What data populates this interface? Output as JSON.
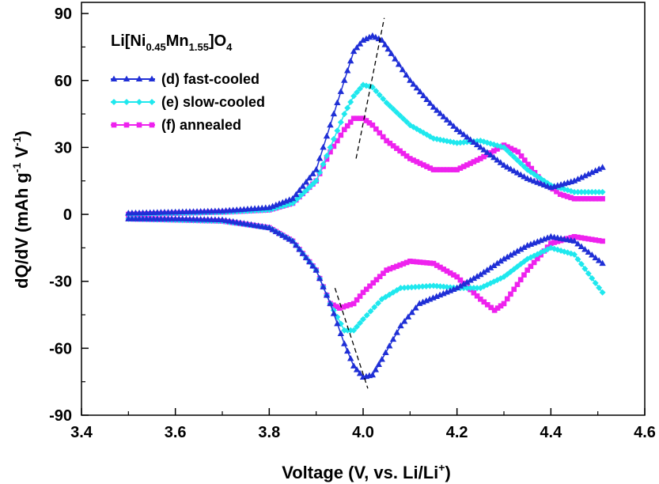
{
  "chart_data": {
    "type": "line",
    "title": "",
    "annotation": {
      "prefix": "Li[Ni",
      "sub1": "0.45",
      "mid": "Mn",
      "sub2": "1.55",
      "after": "]O",
      "sub3": "4"
    },
    "xlabel": {
      "main": "Voltage (V, vs. Li/Li",
      "sup": "+",
      "close": ")"
    },
    "ylabel": {
      "main": "dQ/dV (mAh g",
      "sup1": "-1",
      "mid": " V",
      "sup2": "-1",
      "close": ")"
    },
    "xlim": [
      3.4,
      4.6
    ],
    "ylim": [
      -90,
      95
    ],
    "x_ticks": [
      "3.4",
      "3.6",
      "3.8",
      "4.0",
      "4.2",
      "4.4",
      "4.6"
    ],
    "y_ticks": [
      "90",
      "60",
      "30",
      "0",
      "-30",
      "-60",
      "-90"
    ],
    "grid": false,
    "legend_position": "top-left",
    "series": [
      {
        "name": "(d) fast-cooled",
        "color": "#1f2fd6",
        "marker": "triangle",
        "charge": [
          [
            3.5,
            0.5
          ],
          [
            3.6,
            1
          ],
          [
            3.7,
            1.5
          ],
          [
            3.8,
            3
          ],
          [
            3.85,
            7
          ],
          [
            3.9,
            20
          ],
          [
            3.93,
            40
          ],
          [
            3.96,
            60
          ],
          [
            3.98,
            73
          ],
          [
            4.0,
            78
          ],
          [
            4.02,
            80
          ],
          [
            4.04,
            78
          ],
          [
            4.06,
            72
          ],
          [
            4.1,
            60
          ],
          [
            4.15,
            48
          ],
          [
            4.2,
            38
          ],
          [
            4.25,
            30
          ],
          [
            4.3,
            22
          ],
          [
            4.35,
            16
          ],
          [
            4.4,
            12
          ],
          [
            4.45,
            15
          ],
          [
            4.51,
            21
          ]
        ],
        "discharge": [
          [
            3.5,
            -2
          ],
          [
            3.6,
            -2
          ],
          [
            3.7,
            -2.5
          ],
          [
            3.8,
            -6
          ],
          [
            3.85,
            -12
          ],
          [
            3.9,
            -25
          ],
          [
            3.93,
            -40
          ],
          [
            3.96,
            -58
          ],
          [
            3.98,
            -68
          ],
          [
            4.0,
            -73
          ],
          [
            4.02,
            -72
          ],
          [
            4.04,
            -65
          ],
          [
            4.08,
            -50
          ],
          [
            4.12,
            -40
          ],
          [
            4.2,
            -33
          ],
          [
            4.25,
            -27
          ],
          [
            4.3,
            -20
          ],
          [
            4.35,
            -14
          ],
          [
            4.4,
            -10
          ],
          [
            4.45,
            -12
          ],
          [
            4.51,
            -22
          ]
        ]
      },
      {
        "name": "(e) slow-cooled",
        "color": "#1fe8ee",
        "marker": "diamond",
        "charge": [
          [
            3.5,
            0
          ],
          [
            3.6,
            0.5
          ],
          [
            3.7,
            1
          ],
          [
            3.8,
            2
          ],
          [
            3.85,
            5
          ],
          [
            3.9,
            15
          ],
          [
            3.93,
            30
          ],
          [
            3.96,
            45
          ],
          [
            3.98,
            53
          ],
          [
            4.0,
            58
          ],
          [
            4.02,
            57
          ],
          [
            4.05,
            50
          ],
          [
            4.1,
            40
          ],
          [
            4.15,
            34
          ],
          [
            4.2,
            32
          ],
          [
            4.25,
            33
          ],
          [
            4.3,
            30
          ],
          [
            4.35,
            20
          ],
          [
            4.4,
            13
          ],
          [
            4.45,
            10
          ],
          [
            4.51,
            10
          ]
        ],
        "discharge": [
          [
            3.5,
            -2
          ],
          [
            3.6,
            -2.5
          ],
          [
            3.7,
            -3
          ],
          [
            3.8,
            -6
          ],
          [
            3.85,
            -12
          ],
          [
            3.9,
            -25
          ],
          [
            3.93,
            -40
          ],
          [
            3.96,
            -52
          ],
          [
            3.98,
            -52
          ],
          [
            4.0,
            -47
          ],
          [
            4.04,
            -38
          ],
          [
            4.08,
            -33
          ],
          [
            4.15,
            -32
          ],
          [
            4.2,
            -33
          ],
          [
            4.25,
            -33
          ],
          [
            4.3,
            -28
          ],
          [
            4.35,
            -20
          ],
          [
            4.4,
            -15
          ],
          [
            4.45,
            -18
          ],
          [
            4.51,
            -35
          ]
        ]
      },
      {
        "name": "(f)  annealed",
        "color": "#ee22ee",
        "marker": "square",
        "charge": [
          [
            3.5,
            0
          ],
          [
            3.6,
            0.5
          ],
          [
            3.7,
            1
          ],
          [
            3.8,
            2
          ],
          [
            3.85,
            5
          ],
          [
            3.9,
            15
          ],
          [
            3.93,
            28
          ],
          [
            3.96,
            38
          ],
          [
            3.98,
            43
          ],
          [
            4.0,
            43
          ],
          [
            4.02,
            40
          ],
          [
            4.05,
            33
          ],
          [
            4.1,
            25
          ],
          [
            4.15,
            20
          ],
          [
            4.2,
            20
          ],
          [
            4.25,
            25
          ],
          [
            4.3,
            31
          ],
          [
            4.33,
            28
          ],
          [
            4.38,
            15
          ],
          [
            4.42,
            9
          ],
          [
            4.45,
            7
          ],
          [
            4.51,
            7
          ]
        ],
        "discharge": [
          [
            3.5,
            -2
          ],
          [
            3.6,
            -2.5
          ],
          [
            3.7,
            -3
          ],
          [
            3.8,
            -6
          ],
          [
            3.85,
            -12
          ],
          [
            3.9,
            -25
          ],
          [
            3.93,
            -40
          ],
          [
            3.95,
            -42
          ],
          [
            3.98,
            -40
          ],
          [
            4.0,
            -35
          ],
          [
            4.05,
            -25
          ],
          [
            4.1,
            -21
          ],
          [
            4.15,
            -22
          ],
          [
            4.2,
            -28
          ],
          [
            4.25,
            -38
          ],
          [
            4.28,
            -43
          ],
          [
            4.3,
            -40
          ],
          [
            4.35,
            -25
          ],
          [
            4.4,
            -13
          ],
          [
            4.45,
            -10
          ],
          [
            4.51,
            -12
          ]
        ]
      }
    ],
    "guide_lines": [
      [
        [
          3.985,
          25
        ],
        [
          4.045,
          88
        ]
      ],
      [
        [
          3.94,
          -33
        ],
        [
          4.01,
          -78
        ]
      ]
    ]
  }
}
